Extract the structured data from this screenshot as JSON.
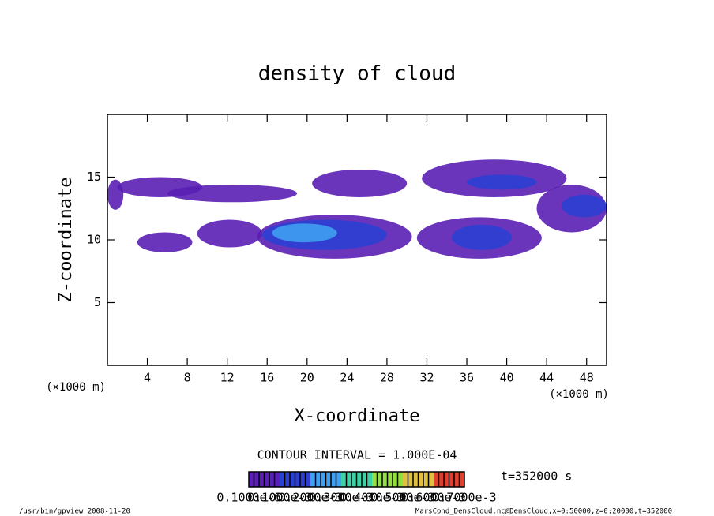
{
  "chart_data": {
    "type": "shaded-contour",
    "title": "density of cloud",
    "x_label": "X-coordinate",
    "y_label": "Z-coordinate",
    "x_unit": "(×1000 m)",
    "y_unit": "(×1000 m)",
    "xlim": [
      0,
      50
    ],
    "ylim": [
      0,
      20
    ],
    "xticks": [
      4,
      8,
      12,
      16,
      20,
      24,
      28,
      32,
      36,
      40,
      44,
      48
    ],
    "yticks": [
      5,
      10,
      15
    ],
    "contour_interval": "CONTOUR INTERVAL = 1.000E-04",
    "time_label": "t=352000 s",
    "colorbar": {
      "levels": [
        1e-07,
        0.0001,
        0.0002,
        0.0003,
        0.0004,
        0.0005,
        0.0006,
        0.0007
      ],
      "labels": [
        "0.1000e-6",
        "0.1000e-3",
        "0.2000e-3",
        "0.3000e-3",
        "0.4000e-3",
        "0.5000e-3",
        "0.6000e-3",
        "0.7000e-3"
      ],
      "colors": [
        "#5a1fb4",
        "#2c3fd2",
        "#3f9ff0",
        "#3fd0a8",
        "#92e040",
        "#e0c040",
        "#e04030"
      ]
    },
    "regions": [
      {
        "x": [
          0,
          1.6
        ],
        "z": [
          12.4,
          14.8
        ],
        "value": 5e-05
      },
      {
        "x": [
          1,
          9.5
        ],
        "z": [
          13.4,
          15
        ],
        "value": 5e-05
      },
      {
        "x": [
          6,
          19
        ],
        "z": [
          13,
          14.4
        ],
        "value": 5e-05
      },
      {
        "x": [
          20.5,
          30
        ],
        "z": [
          13.4,
          15.6
        ],
        "value": 5e-05
      },
      {
        "x": [
          31.5,
          46
        ],
        "z": [
          13.4,
          16.4
        ],
        "value": 5e-05
      },
      {
        "x": [
          36,
          43
        ],
        "z": [
          14,
          15.2
        ],
        "value": 0.00015
      },
      {
        "x": [
          43,
          50
        ],
        "z": [
          10.6,
          14.4
        ],
        "value": 5e-05
      },
      {
        "x": [
          45.5,
          50
        ],
        "z": [
          11.8,
          13.6
        ],
        "value": 0.00015
      },
      {
        "x": [
          3,
          8.5
        ],
        "z": [
          9,
          10.6
        ],
        "value": 5e-05
      },
      {
        "x": [
          9,
          15.5
        ],
        "z": [
          9.4,
          11.6
        ],
        "value": 5e-05
      },
      {
        "x": [
          15,
          30.5
        ],
        "z": [
          8.5,
          12
        ],
        "value": 5e-05
      },
      {
        "x": [
          15.5,
          28
        ],
        "z": [
          9.2,
          11.6
        ],
        "value": 0.00015
      },
      {
        "x": [
          16.5,
          23
        ],
        "z": [
          9.8,
          11.3
        ],
        "value": 0.00025
      },
      {
        "x": [
          31,
          43.5
        ],
        "z": [
          8.5,
          11.8
        ],
        "value": 5e-05
      },
      {
        "x": [
          34.5,
          40.5
        ],
        "z": [
          9.2,
          11.2
        ],
        "value": 0.00015
      }
    ],
    "footer_left": "/usr/bin/gpview  2008-11-20",
    "footer_right": "MarsCond_DensCloud.nc@DensCloud,x=0:50000,z=0:20000,t=352000"
  }
}
